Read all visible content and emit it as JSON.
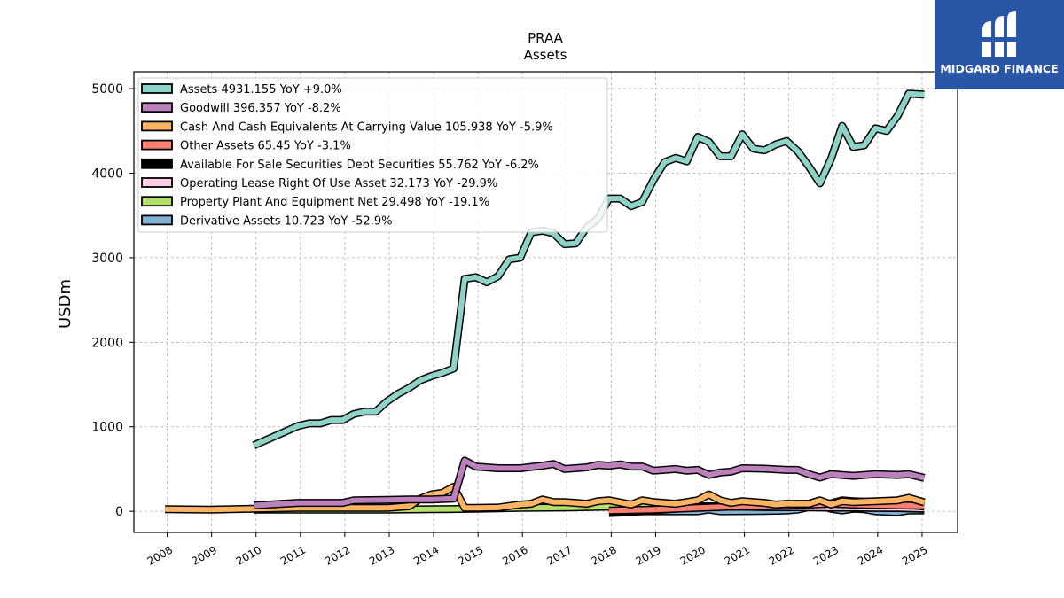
{
  "brand": {
    "name": "MIDGARD FINANCE",
    "logo_icon": "midgard-logo-icon",
    "color": "#2a56a8"
  },
  "chart_data": {
    "type": "line",
    "title": "PRAA",
    "subtitle": "Assets",
    "xlabel": "",
    "ylabel": "USDm",
    "x_ticks": [
      "2008",
      "2009",
      "2010",
      "2011",
      "2012",
      "2013",
      "2014",
      "2015",
      "2016",
      "2017",
      "2018",
      "2019",
      "2020",
      "2021",
      "2022",
      "2023",
      "2024",
      "2025"
    ],
    "y_ticks": [
      0,
      1000,
      2000,
      3000,
      4000,
      5000
    ],
    "xlim": [
      2007.25,
      2025.8
    ],
    "ylim": [
      -250,
      5200
    ],
    "grid": true,
    "legend_position": "top-left",
    "series": [
      {
        "name": "Assets",
        "legend": "Assets  4931.155 YoY +9.0%",
        "color": "#8dd3c7",
        "points": [
          [
            2009.95,
            780
          ],
          [
            2010.95,
            1010
          ],
          [
            2011.2,
            1040
          ],
          [
            2011.45,
            1040
          ],
          [
            2011.7,
            1080
          ],
          [
            2011.95,
            1080
          ],
          [
            2012.2,
            1150
          ],
          [
            2012.45,
            1180
          ],
          [
            2012.7,
            1180
          ],
          [
            2012.95,
            1300
          ],
          [
            2013.2,
            1390
          ],
          [
            2013.45,
            1460
          ],
          [
            2013.7,
            1550
          ],
          [
            2013.95,
            1600
          ],
          [
            2014.2,
            1640
          ],
          [
            2014.45,
            1690
          ],
          [
            2014.7,
            2750
          ],
          [
            2014.95,
            2770
          ],
          [
            2015.2,
            2710
          ],
          [
            2015.45,
            2780
          ],
          [
            2015.7,
            2980
          ],
          [
            2015.95,
            3000
          ],
          [
            2016.2,
            3300
          ],
          [
            2016.45,
            3320
          ],
          [
            2016.7,
            3290
          ],
          [
            2016.95,
            3160
          ],
          [
            2017.2,
            3170
          ],
          [
            2017.45,
            3360
          ],
          [
            2017.7,
            3460
          ],
          [
            2017.95,
            3700
          ],
          [
            2018.2,
            3700
          ],
          [
            2018.45,
            3610
          ],
          [
            2018.7,
            3660
          ],
          [
            2018.95,
            3920
          ],
          [
            2019.2,
            4130
          ],
          [
            2019.45,
            4180
          ],
          [
            2019.7,
            4140
          ],
          [
            2019.95,
            4430
          ],
          [
            2020.2,
            4370
          ],
          [
            2020.45,
            4200
          ],
          [
            2020.7,
            4200
          ],
          [
            2020.95,
            4460
          ],
          [
            2021.2,
            4290
          ],
          [
            2021.45,
            4270
          ],
          [
            2021.7,
            4340
          ],
          [
            2021.95,
            4380
          ],
          [
            2022.2,
            4260
          ],
          [
            2022.45,
            4080
          ],
          [
            2022.7,
            3880
          ],
          [
            2022.95,
            4170
          ],
          [
            2023.2,
            4560
          ],
          [
            2023.45,
            4310
          ],
          [
            2023.7,
            4330
          ],
          [
            2023.95,
            4530
          ],
          [
            2024.2,
            4500
          ],
          [
            2024.45,
            4680
          ],
          [
            2024.7,
            4940
          ],
          [
            2025.05,
            4931
          ]
        ]
      },
      {
        "name": "Goodwill",
        "legend": "Goodwill  396.357 YoY -8.2%",
        "color": "#bc80bd",
        "points": [
          [
            2009.95,
            70
          ],
          [
            2010.95,
            100
          ],
          [
            2011.95,
            100
          ],
          [
            2012.2,
            130
          ],
          [
            2012.95,
            135
          ],
          [
            2013.45,
            140
          ],
          [
            2013.95,
            140
          ],
          [
            2014.45,
            150
          ],
          [
            2014.7,
            600
          ],
          [
            2014.95,
            530
          ],
          [
            2015.45,
            510
          ],
          [
            2015.95,
            510
          ],
          [
            2016.45,
            540
          ],
          [
            2016.7,
            560
          ],
          [
            2016.95,
            500
          ],
          [
            2017.45,
            520
          ],
          [
            2017.7,
            550
          ],
          [
            2017.95,
            540
          ],
          [
            2018.2,
            555
          ],
          [
            2018.45,
            530
          ],
          [
            2018.7,
            530
          ],
          [
            2018.95,
            480
          ],
          [
            2019.45,
            500
          ],
          [
            2019.7,
            480
          ],
          [
            2019.95,
            490
          ],
          [
            2020.2,
            430
          ],
          [
            2020.45,
            460
          ],
          [
            2020.7,
            470
          ],
          [
            2020.95,
            510
          ],
          [
            2021.45,
            505
          ],
          [
            2021.95,
            490
          ],
          [
            2022.2,
            490
          ],
          [
            2022.45,
            440
          ],
          [
            2022.7,
            400
          ],
          [
            2022.95,
            440
          ],
          [
            2023.45,
            420
          ],
          [
            2023.95,
            440
          ],
          [
            2024.45,
            430
          ],
          [
            2024.7,
            440
          ],
          [
            2025.05,
            396
          ]
        ]
      },
      {
        "name": "Cash And Cash Equivalents At Carrying Value",
        "legend": "Cash And Cash Equivalents At Carrying Value  105.938 YoY -5.9%",
        "color": "#fdb462",
        "points": [
          [
            2007.95,
            25
          ],
          [
            2008.95,
            20
          ],
          [
            2009.95,
            30
          ],
          [
            2010.95,
            40
          ],
          [
            2011.95,
            40
          ],
          [
            2012.95,
            40
          ],
          [
            2013.45,
            60
          ],
          [
            2013.7,
            150
          ],
          [
            2013.95,
            200
          ],
          [
            2014.2,
            220
          ],
          [
            2014.45,
            290
          ],
          [
            2014.7,
            40
          ],
          [
            2014.95,
            40
          ],
          [
            2015.45,
            45
          ],
          [
            2015.95,
            80
          ],
          [
            2016.2,
            90
          ],
          [
            2016.45,
            140
          ],
          [
            2016.7,
            110
          ],
          [
            2016.95,
            110
          ],
          [
            2017.45,
            90
          ],
          [
            2017.7,
            120
          ],
          [
            2017.95,
            130
          ],
          [
            2018.45,
            80
          ],
          [
            2018.7,
            130
          ],
          [
            2018.95,
            110
          ],
          [
            2019.45,
            90
          ],
          [
            2019.7,
            110
          ],
          [
            2019.95,
            130
          ],
          [
            2020.2,
            200
          ],
          [
            2020.45,
            130
          ],
          [
            2020.7,
            100
          ],
          [
            2020.95,
            120
          ],
          [
            2021.45,
            100
          ],
          [
            2021.7,
            80
          ],
          [
            2021.95,
            90
          ],
          [
            2022.45,
            90
          ],
          [
            2022.7,
            130
          ],
          [
            2022.95,
            80
          ],
          [
            2023.2,
            120
          ],
          [
            2023.45,
            110
          ],
          [
            2023.95,
            120
          ],
          [
            2024.45,
            130
          ],
          [
            2024.7,
            160
          ],
          [
            2025.05,
            106
          ]
        ]
      },
      {
        "name": "Other Assets",
        "legend": "Other Assets  65.45 YoY -3.1%",
        "color": "#fb8072",
        "points": [
          [
            2017.95,
            10
          ],
          [
            2018.95,
            20
          ],
          [
            2019.95,
            40
          ],
          [
            2020.95,
            60
          ],
          [
            2021.95,
            70
          ],
          [
            2022.45,
            80
          ],
          [
            2022.95,
            90
          ],
          [
            2023.45,
            80
          ],
          [
            2023.95,
            75
          ],
          [
            2024.45,
            70
          ],
          [
            2025.05,
            65
          ]
        ]
      },
      {
        "name": "Available For Sale Securities Debt Securities",
        "legend": "Available For Sale Securities Debt Securities  55.762 YoY -6.2%",
        "color": "#000000",
        "points": [
          [
            2017.95,
            -20
          ],
          [
            2018.45,
            -10
          ],
          [
            2018.95,
            10
          ],
          [
            2019.45,
            30
          ],
          [
            2019.95,
            50
          ],
          [
            2020.45,
            60
          ],
          [
            2020.95,
            70
          ],
          [
            2021.45,
            75
          ],
          [
            2021.95,
            80
          ],
          [
            2022.45,
            90
          ],
          [
            2022.95,
            95
          ],
          [
            2023.2,
            130
          ],
          [
            2023.45,
            120
          ],
          [
            2023.95,
            110
          ],
          [
            2024.45,
            90
          ],
          [
            2025.05,
            56
          ]
        ]
      },
      {
        "name": "Operating Lease Right Of Use Asset",
        "legend": "Operating Lease Right Of Use Asset  32.173 YoY -29.9%",
        "color": "#fccde5",
        "points": [
          [
            2018.95,
            70
          ],
          [
            2019.45,
            65
          ],
          [
            2019.95,
            60
          ],
          [
            2020.45,
            55
          ],
          [
            2020.95,
            55
          ],
          [
            2021.45,
            50
          ],
          [
            2021.95,
            50
          ],
          [
            2022.45,
            48
          ],
          [
            2022.95,
            45
          ],
          [
            2023.45,
            45
          ],
          [
            2023.95,
            40
          ],
          [
            2024.45,
            40
          ],
          [
            2025.05,
            32
          ]
        ]
      },
      {
        "name": "Property Plant And Equipment Net",
        "legend": "Property Plant And Equipment Net  29.498 YoY -19.1%",
        "color": "#b3de69",
        "points": [
          [
            2009.95,
            20
          ],
          [
            2010.95,
            20
          ],
          [
            2011.95,
            20
          ],
          [
            2012.95,
            20
          ],
          [
            2013.95,
            25
          ],
          [
            2014.95,
            30
          ],
          [
            2015.95,
            40
          ],
          [
            2016.95,
            45
          ],
          [
            2017.95,
            55
          ],
          [
            2018.95,
            60
          ],
          [
            2019.95,
            60
          ],
          [
            2020.95,
            55
          ],
          [
            2021.95,
            50
          ],
          [
            2022.95,
            45
          ],
          [
            2023.95,
            40
          ],
          [
            2024.45,
            38
          ],
          [
            2025.05,
            29
          ]
        ]
      },
      {
        "name": "Derivative Assets",
        "legend": "Derivative Assets  10.723 YoY -52.9%",
        "color": "#80b1d3",
        "points": [
          [
            2018.7,
            0
          ],
          [
            2019.45,
            0
          ],
          [
            2019.95,
            0
          ],
          [
            2020.2,
            20
          ],
          [
            2020.45,
            0
          ],
          [
            2021.45,
            5
          ],
          [
            2021.95,
            10
          ],
          [
            2022.2,
            20
          ],
          [
            2022.45,
            50
          ],
          [
            2022.7,
            70
          ],
          [
            2022.95,
            30
          ],
          [
            2023.2,
            10
          ],
          [
            2023.45,
            30
          ],
          [
            2023.7,
            25
          ],
          [
            2023.95,
            0
          ],
          [
            2024.45,
            -10
          ],
          [
            2024.7,
            10
          ],
          [
            2025.05,
            11
          ]
        ]
      }
    ]
  }
}
